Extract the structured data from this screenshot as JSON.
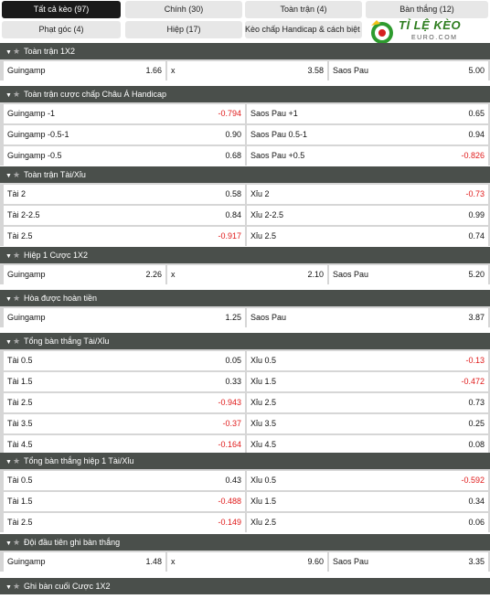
{
  "tabs": [
    {
      "label": "Tất cả kèo (97)",
      "active": true
    },
    {
      "label": "Chính (30)",
      "active": false
    },
    {
      "label": "Toàn trận (4)",
      "active": false
    },
    {
      "label": "Bàn thắng (12)",
      "active": false
    },
    {
      "label": "Phạt góc (4)",
      "active": false
    },
    {
      "label": "Hiệp (17)",
      "active": false
    },
    {
      "label": "Kèo chấp Handicap & cách biệt (3)",
      "active": false
    }
  ],
  "logo": {
    "text": "TỈ LỆ KÈO",
    "sub": "EURO.COM"
  },
  "sections": [
    {
      "title": "Toàn trận 1X2",
      "layout": 3,
      "rows": [
        [
          {
            "label": "Guingamp",
            "odd": "1.66"
          },
          {
            "label": "x",
            "odd": "3.58"
          },
          {
            "label": "Saos Pau",
            "odd": "5.00"
          }
        ]
      ]
    },
    {
      "title": "Toàn trận cược chấp Châu Á Handicap",
      "layout": 2,
      "rows": [
        [
          {
            "label": "Guingamp -1",
            "odd": "-0.794"
          },
          {
            "label": "Saos Pau +1",
            "odd": "0.65"
          }
        ],
        [
          {
            "label": "Guingamp -0.5-1",
            "odd": "0.90"
          },
          {
            "label": "Saos Pau 0.5-1",
            "odd": "0.94"
          }
        ],
        [
          {
            "label": "Guingamp -0.5",
            "odd": "0.68"
          },
          {
            "label": "Saos Pau +0.5",
            "odd": "-0.826"
          }
        ]
      ]
    },
    {
      "title": "Toàn trận Tài/Xỉu",
      "layout": 2,
      "rows": [
        [
          {
            "label": "Tài 2",
            "odd": "0.58"
          },
          {
            "label": "Xỉu 2",
            "odd": "-0.73"
          }
        ],
        [
          {
            "label": "Tài 2-2.5",
            "odd": "0.84"
          },
          {
            "label": "Xỉu 2-2.5",
            "odd": "0.99"
          }
        ],
        [
          {
            "label": "Tài 2.5",
            "odd": "-0.917"
          },
          {
            "label": "Xỉu 2.5",
            "odd": "0.74"
          }
        ]
      ]
    },
    {
      "title": "Hiệp 1 Cược 1X2",
      "layout": 3,
      "rows": [
        [
          {
            "label": "Guingamp",
            "odd": "2.26"
          },
          {
            "label": "x",
            "odd": "2.10"
          },
          {
            "label": "Saos Pau",
            "odd": "5.20"
          }
        ]
      ]
    },
    {
      "title": "Hòa được hoàn tiền",
      "layout": 2,
      "rows": [
        [
          {
            "label": "Guingamp",
            "odd": "1.25"
          },
          {
            "label": "Saos Pau",
            "odd": "3.87"
          }
        ]
      ]
    },
    {
      "title": "Tổng bàn thắng Tài/Xỉu",
      "layout": 2,
      "rows": [
        [
          {
            "label": "Tài 0.5",
            "odd": "0.05"
          },
          {
            "label": "Xỉu 0.5",
            "odd": "-0.13"
          }
        ],
        [
          {
            "label": "Tài 1.5",
            "odd": "0.33"
          },
          {
            "label": "Xỉu 1.5",
            "odd": "-0.472"
          }
        ],
        [
          {
            "label": "Tài 2.5",
            "odd": "-0.943"
          },
          {
            "label": "Xỉu 2.5",
            "odd": "0.73"
          }
        ],
        [
          {
            "label": "Tài 3.5",
            "odd": "-0.37"
          },
          {
            "label": "Xỉu 3.5",
            "odd": "0.25"
          }
        ],
        [
          {
            "label": "Tài 4.5",
            "odd": "-0.164"
          },
          {
            "label": "Xỉu 4.5",
            "odd": "0.08"
          }
        ]
      ]
    },
    {
      "title": "Tổng bàn thắng hiệp 1 Tài/Xỉu",
      "layout": 2,
      "rows": [
        [
          {
            "label": "Tài 0.5",
            "odd": "0.43"
          },
          {
            "label": "Xỉu 0.5",
            "odd": "-0.592"
          }
        ],
        [
          {
            "label": "Tài 1.5",
            "odd": "-0.488"
          },
          {
            "label": "Xỉu 1.5",
            "odd": "0.34"
          }
        ],
        [
          {
            "label": "Tài 2.5",
            "odd": "-0.149"
          },
          {
            "label": "Xỉu 2.5",
            "odd": "0.06"
          }
        ]
      ]
    },
    {
      "title": "Đội đầu tiên ghi bàn thắng",
      "layout": 3,
      "rows": [
        [
          {
            "label": "Guingamp",
            "odd": "1.48"
          },
          {
            "label": "x",
            "odd": "9.60"
          },
          {
            "label": "Saos Pau",
            "odd": "3.35"
          }
        ]
      ]
    },
    {
      "title": "Ghi bàn cuối Cược 1X2",
      "layout": 3,
      "rows": []
    }
  ],
  "colors": {
    "header": "#4a4f4b",
    "negative": "#e01b1b",
    "active_tab": "#1a1a1a"
  }
}
